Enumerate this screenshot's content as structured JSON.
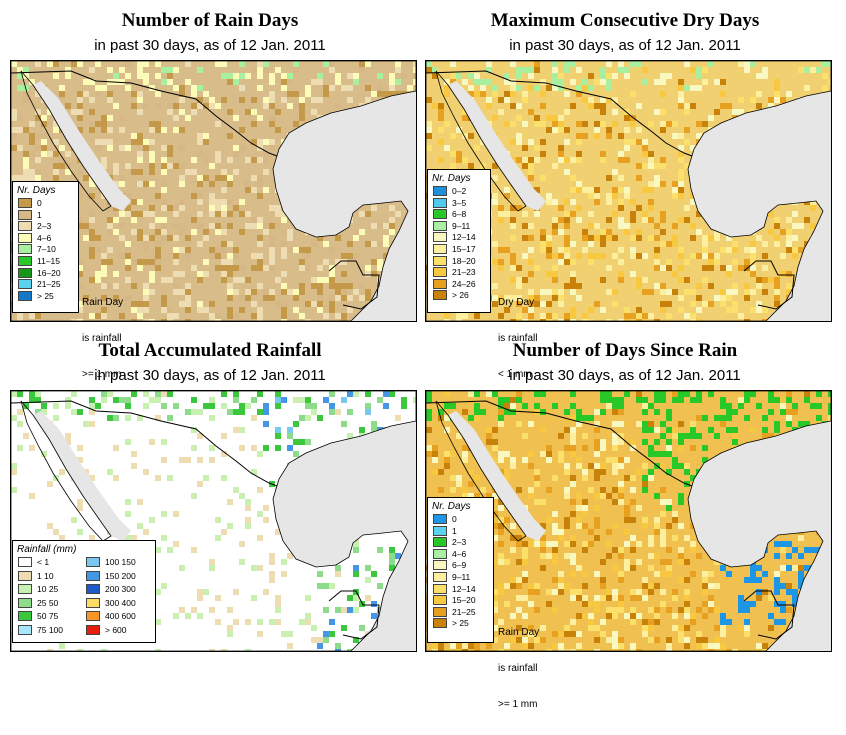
{
  "panels": [
    {
      "title": "Number of Rain Days",
      "subtitle": "in past 30 days, as of  12 Jan. 2011",
      "legend_title": "Nr. Days",
      "note": [
        "Rain Day",
        "is rainfall",
        ">= 1 mm"
      ],
      "classes": [
        {
          "label": "0",
          "color": "#c49a4a"
        },
        {
          "label": "1",
          "color": "#d6b886"
        },
        {
          "label": "2–3",
          "color": "#eedcb2"
        },
        {
          "label": "4–6",
          "color": "#fcfcb8"
        },
        {
          "label": "7–10",
          "color": "#a8f0a0"
        },
        {
          "label": "11–15",
          "color": "#28c828"
        },
        {
          "label": "16–20",
          "color": "#189618"
        },
        {
          "label": "21–25",
          "color": "#5ad2f0"
        },
        {
          "label": "> 25",
          "color": "#1478c8"
        }
      ]
    },
    {
      "title": "Maximum Consecutive Dry Days",
      "subtitle": "in past 30 days, as of  12 Jan. 2011",
      "legend_title": "Nr. Days",
      "note": [
        "Dry Day",
        "is rainfall",
        "< 1 mm"
      ],
      "classes": [
        {
          "label": "0–2",
          "color": "#1e90dc"
        },
        {
          "label": "3–5",
          "color": "#50c8f0"
        },
        {
          "label": "6–8",
          "color": "#28c828"
        },
        {
          "label": "9–11",
          "color": "#a8f0a0"
        },
        {
          "label": "12–14",
          "color": "#f8f8c0"
        },
        {
          "label": "15–17",
          "color": "#fcf0a0"
        },
        {
          "label": "18–20",
          "color": "#fce06c"
        },
        {
          "label": "21–23",
          "color": "#f8c840"
        },
        {
          "label": "24–26",
          "color": "#e8a020"
        },
        {
          "label": "> 26",
          "color": "#c8820a"
        }
      ]
    },
    {
      "title": "Total Accumulated Rainfall",
      "subtitle": "in past 30 days, as of  12 Jan. 2011",
      "legend_title": "Rainfall (mm)",
      "note": [],
      "classes": [
        {
          "label": "< 1",
          "color": "#ffffff"
        },
        {
          "label": "1   10",
          "color": "#eedcb2"
        },
        {
          "label": "10   25",
          "color": "#c8f0b0"
        },
        {
          "label": "25   50",
          "color": "#8cdc8c"
        },
        {
          "label": "50   75",
          "color": "#3cc83c"
        },
        {
          "label": "75   100",
          "color": "#aae6fa"
        },
        {
          "label": "100   150",
          "color": "#78c8f0"
        },
        {
          "label": "150   200",
          "color": "#4696e6"
        },
        {
          "label": "200   300",
          "color": "#1e5ac8"
        },
        {
          "label": "300   400",
          "color": "#fcdc64"
        },
        {
          "label": "400   600",
          "color": "#fa9628"
        },
        {
          "label": "> 600",
          "color": "#e61e0a"
        }
      ]
    },
    {
      "title": "Number of Days Since Rain",
      "subtitle": "in past 30 days, as of  12 Jan. 2011",
      "legend_title": "Nr. Days",
      "note": [
        "Rain Day",
        "is rainfall",
        ">= 1 mm"
      ],
      "classes": [
        {
          "label": "0",
          "color": "#1e96e6"
        },
        {
          "label": "1",
          "color": "#5ad2f0"
        },
        {
          "label": "2–3",
          "color": "#28c828"
        },
        {
          "label": "4–6",
          "color": "#a8f0a0"
        },
        {
          "label": "6–9",
          "color": "#f8f8c0"
        },
        {
          "label": "9–11",
          "color": "#fcf0a0"
        },
        {
          "label": "12–14",
          "color": "#fce06c"
        },
        {
          "label": "15–20",
          "color": "#f8c840"
        },
        {
          "label": "21–25",
          "color": "#e8a020"
        },
        {
          "label": "> 25",
          "color": "#c8820a"
        }
      ]
    }
  ],
  "colors": {
    "ocean": "#e6e6e6",
    "border_lines": "#000000"
  }
}
